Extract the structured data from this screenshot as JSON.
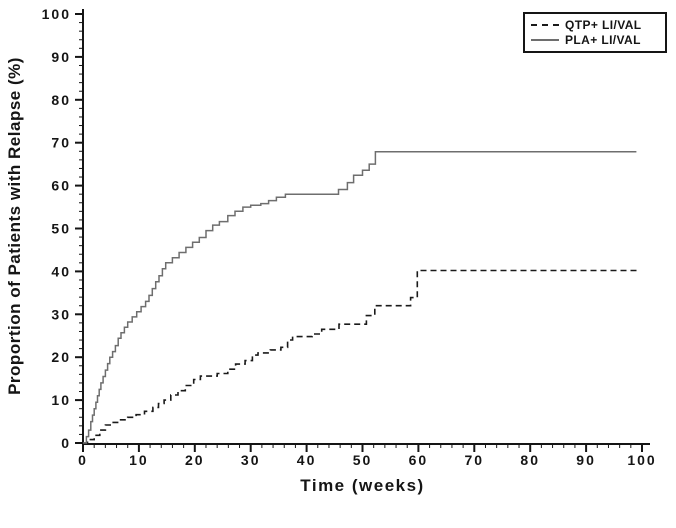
{
  "chart_data": {
    "type": "line",
    "variant": "step",
    "title": "",
    "xlabel": "Time (weeks)",
    "ylabel": "Proportion of Patients with Relapse (%)",
    "xlim": [
      0,
      100
    ],
    "ylim": [
      0,
      100
    ],
    "x_major_ticks": [
      0,
      10,
      20,
      30,
      40,
      50,
      60,
      70,
      80,
      90,
      100
    ],
    "y_major_ticks": [
      0,
      10,
      20,
      30,
      40,
      50,
      60,
      70,
      80,
      90,
      100
    ],
    "x_minor_step": 2,
    "y_minor_step": 2,
    "grid": false,
    "legend_position": "top-right",
    "axis_color": "#151515",
    "background_color": "#ffffff",
    "series": [
      {
        "name": "QTP+ LI/VAL",
        "style": "dashed",
        "color": "#1a1a1a",
        "points": [
          [
            0,
            0
          ],
          [
            0.8,
            0.8
          ],
          [
            2,
            1.8
          ],
          [
            3,
            3
          ],
          [
            4,
            4.2
          ],
          [
            5.2,
            4.8
          ],
          [
            6.5,
            5.4
          ],
          [
            8,
            6
          ],
          [
            9.5,
            6.6
          ],
          [
            11,
            7.4
          ],
          [
            12.5,
            8.3
          ],
          [
            13.5,
            9.2
          ],
          [
            14.5,
            10
          ],
          [
            15.7,
            11.2
          ],
          [
            17,
            12.2
          ],
          [
            18.3,
            13.4
          ],
          [
            19.8,
            14.8
          ],
          [
            21,
            15.6
          ],
          [
            24,
            16.2
          ],
          [
            25.9,
            17.2
          ],
          [
            27.3,
            18.4
          ],
          [
            29,
            19.2
          ],
          [
            30.3,
            20.5
          ],
          [
            31.3,
            21
          ],
          [
            33.5,
            21.7
          ],
          [
            35.4,
            22.3
          ],
          [
            36.6,
            24
          ],
          [
            37.5,
            24.8
          ],
          [
            41,
            25.4
          ],
          [
            42.7,
            26.5
          ],
          [
            45.8,
            27.7
          ],
          [
            50.7,
            29.7
          ],
          [
            52.2,
            32
          ],
          [
            58.6,
            33.9
          ],
          [
            59.8,
            40.2
          ],
          [
            99.2,
            40.2
          ]
        ]
      },
      {
        "name": "PLA+ LI/VAL",
        "style": "solid",
        "color": "#6e6e6e",
        "points": [
          [
            0,
            0
          ],
          [
            0.6,
            1.5
          ],
          [
            1,
            3
          ],
          [
            1.4,
            5
          ],
          [
            1.7,
            6.5
          ],
          [
            2,
            8
          ],
          [
            2.3,
            9.5
          ],
          [
            2.6,
            11
          ],
          [
            2.9,
            12.5
          ],
          [
            3.2,
            14
          ],
          [
            3.6,
            15.5
          ],
          [
            4,
            17
          ],
          [
            4.4,
            18.5
          ],
          [
            4.8,
            20
          ],
          [
            5.3,
            21.3
          ],
          [
            5.8,
            22.7
          ],
          [
            6.3,
            24.4
          ],
          [
            6.8,
            25.7
          ],
          [
            7.4,
            27
          ],
          [
            8,
            28.2
          ],
          [
            8.8,
            29.4
          ],
          [
            9.6,
            30.6
          ],
          [
            10.4,
            31.8
          ],
          [
            11.2,
            33
          ],
          [
            11.8,
            34.4
          ],
          [
            12.4,
            36
          ],
          [
            13,
            37.6
          ],
          [
            13.6,
            39
          ],
          [
            14.2,
            40.6
          ],
          [
            14.8,
            42
          ],
          [
            16,
            43.2
          ],
          [
            17.2,
            44.4
          ],
          [
            18.4,
            45.6
          ],
          [
            19.6,
            46.8
          ],
          [
            20.8,
            47.9
          ],
          [
            22,
            49.5
          ],
          [
            23.2,
            50.8
          ],
          [
            24.4,
            51.6
          ],
          [
            25.9,
            53
          ],
          [
            27.2,
            54
          ],
          [
            28.6,
            55
          ],
          [
            30,
            55.4
          ],
          [
            31.8,
            55.8
          ],
          [
            33.2,
            56.5
          ],
          [
            34.6,
            57.3
          ],
          [
            36.2,
            58
          ],
          [
            45.7,
            59.1
          ],
          [
            47.3,
            60.7
          ],
          [
            48.4,
            62.4
          ],
          [
            50,
            63.6
          ],
          [
            51.2,
            65
          ],
          [
            52.3,
            67.9
          ],
          [
            99,
            67.9
          ]
        ]
      }
    ]
  }
}
